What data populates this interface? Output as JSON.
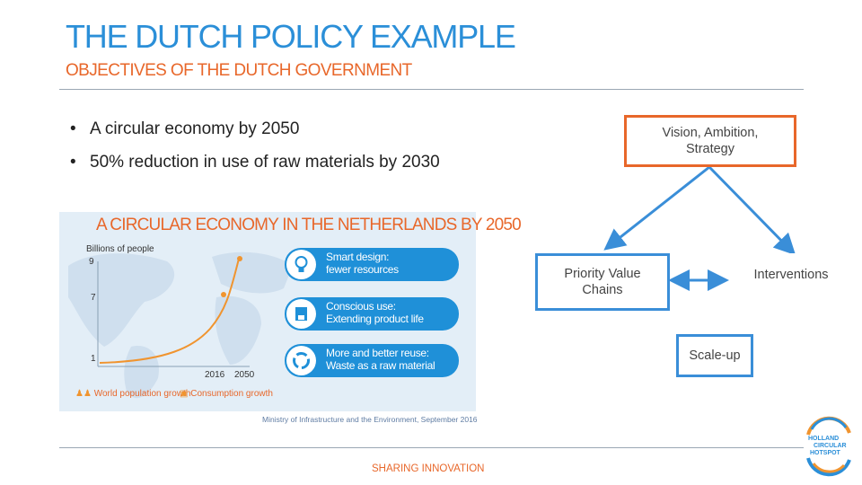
{
  "slide": {
    "title": "THE DUTCH POLICY EXAMPLE",
    "subtitle": "OBJECTIVES OF THE DUTCH GOVERNMENT",
    "bullets": [
      "A circular economy by 2050",
      "50% reduction in use of raw materials by 2030"
    ],
    "footer": "SHARING INNOVATION"
  },
  "infographic": {
    "title": "A CIRCULAR ECONOMY IN THE NETHERLANDS BY 2050",
    "y_label": "Billions of people",
    "y_ticks": [
      "9",
      "7",
      "1"
    ],
    "x_ticks": [
      "2016",
      "2050"
    ],
    "pills": [
      {
        "line1": "Smart design:",
        "line2": "fewer resources",
        "icon": "lightbulb-icon"
      },
      {
        "line1": "Conscious use:",
        "line2": "Extending product life",
        "icon": "coffee-machine-icon"
      },
      {
        "line1": "More and better reuse:",
        "line2": "Waste as a raw material",
        "icon": "recycle-icon"
      }
    ],
    "legend": [
      "World population growth",
      "Consumption growth"
    ],
    "source": "Ministry of Infrastructure and the Environment, September 2016"
  },
  "diagram": {
    "vision_line1": "Vision, Ambition,",
    "vision_line2": "Strategy",
    "priority_line1": "Priority Value",
    "priority_line2": "Chains",
    "interventions": "Interventions",
    "scaleup": "Scale-up"
  },
  "logo": {
    "line1": "HOLLAND",
    "line2": "CIRCULAR",
    "line3": "HOTSPOT"
  },
  "colors": {
    "title_blue": "#2b8fd8",
    "accent_orange": "#e8672a",
    "pill_blue": "#1f90d8",
    "diagram_blue": "#3a8ed8"
  }
}
